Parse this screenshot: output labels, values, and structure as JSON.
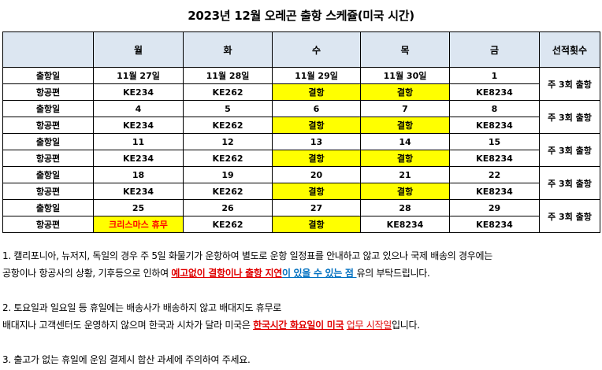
{
  "title": "2023년 12월 오레곤 출항 스케쥴(미국 시간)",
  "headers": [
    "",
    "월",
    "화",
    "수",
    "목",
    "금",
    "선적횟수"
  ],
  "row_labels": {
    "date": "출항일",
    "flight": "항공편"
  },
  "weeks": [
    {
      "dates": [
        "11월 27일",
        "11월 28일",
        "11월 29일",
        "11월 30일",
        "1"
      ],
      "flights": [
        "KE234",
        "KE262",
        "결항",
        "결항",
        "KE8234"
      ],
      "shipments": "주 3회 출항"
    },
    {
      "dates": [
        "4",
        "5",
        "6",
        "7",
        "8"
      ],
      "flights": [
        "KE234",
        "KE262",
        "결항",
        "결항",
        "KE8234"
      ],
      "shipments": "주 3회 출항"
    },
    {
      "dates": [
        "11",
        "12",
        "13",
        "14",
        "15"
      ],
      "flights": [
        "KE234",
        "KE262",
        "결항",
        "결항",
        "KE8234"
      ],
      "shipments": "주 3회 출항"
    },
    {
      "dates": [
        "18",
        "19",
        "20",
        "21",
        "22"
      ],
      "flights": [
        "KE234",
        "KE262",
        "결항",
        "결항",
        "KE8234"
      ],
      "shipments": "주 3회 출항"
    },
    {
      "dates": [
        "25",
        "26",
        "27",
        "28",
        "29"
      ],
      "flights": [
        "크리스마스 휴무",
        "KE262",
        "결항",
        "KE8234",
        "KE8234"
      ],
      "shipments": "주 3회 출항"
    }
  ],
  "colors": {
    "header_bg": "#dce6f1",
    "cancel_bg": "#ffff00",
    "holiday_text": "#ff0000"
  },
  "notes": {
    "n1_line1": "1. 캘리포니아, 뉴저지, 독일의 경우 주 5일 화물기가 운항하여 별도로 운항 일정표를 안내하고 않고 있으나 국제 배송의 경우에는",
    "n1_line2_a": "공항이나 항공사의 상황, 기후등으로 인하여 ",
    "n1_line2_b": "예고없이 결항이나 출항 지연",
    "n1_line2_c": "이 있을 수 있는 점 ",
    "n1_line2_d": "유의 부탁드립니다.",
    "n2_line1": "2. 토요일과 일요일 등 휴일에는 배송사가 배송하지 않고 배대지도 휴무로",
    "n2_line2_a": "배대지나 고객센터도 운영하지 않으며 한국과 시차가 달라 미국은 ",
    "n2_line2_b": "한국시간 화요일이 미국",
    "n2_line2_c": " ",
    "n2_line2_d": "업무 시작일",
    "n2_line2_e": "입니다.",
    "n3": "3. 출고가 없는 휴일에 운임 결제시 합산 과세에 주의하여 주세요."
  }
}
